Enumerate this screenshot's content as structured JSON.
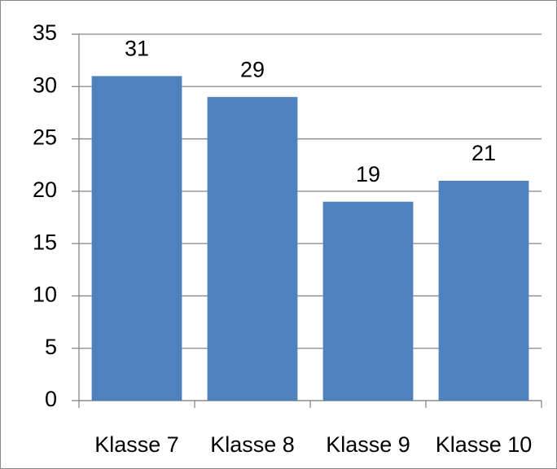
{
  "chart_data": {
    "type": "bar",
    "categories": [
      "Klasse 7",
      "Klasse 8",
      "Klasse 9",
      "Klasse 10"
    ],
    "values": [
      31,
      29,
      19,
      21
    ],
    "color": "#4f81bd",
    "ylim": [
      0,
      35
    ],
    "yticks": [
      0,
      5,
      10,
      15,
      20,
      25,
      30,
      35
    ],
    "grid": true
  }
}
